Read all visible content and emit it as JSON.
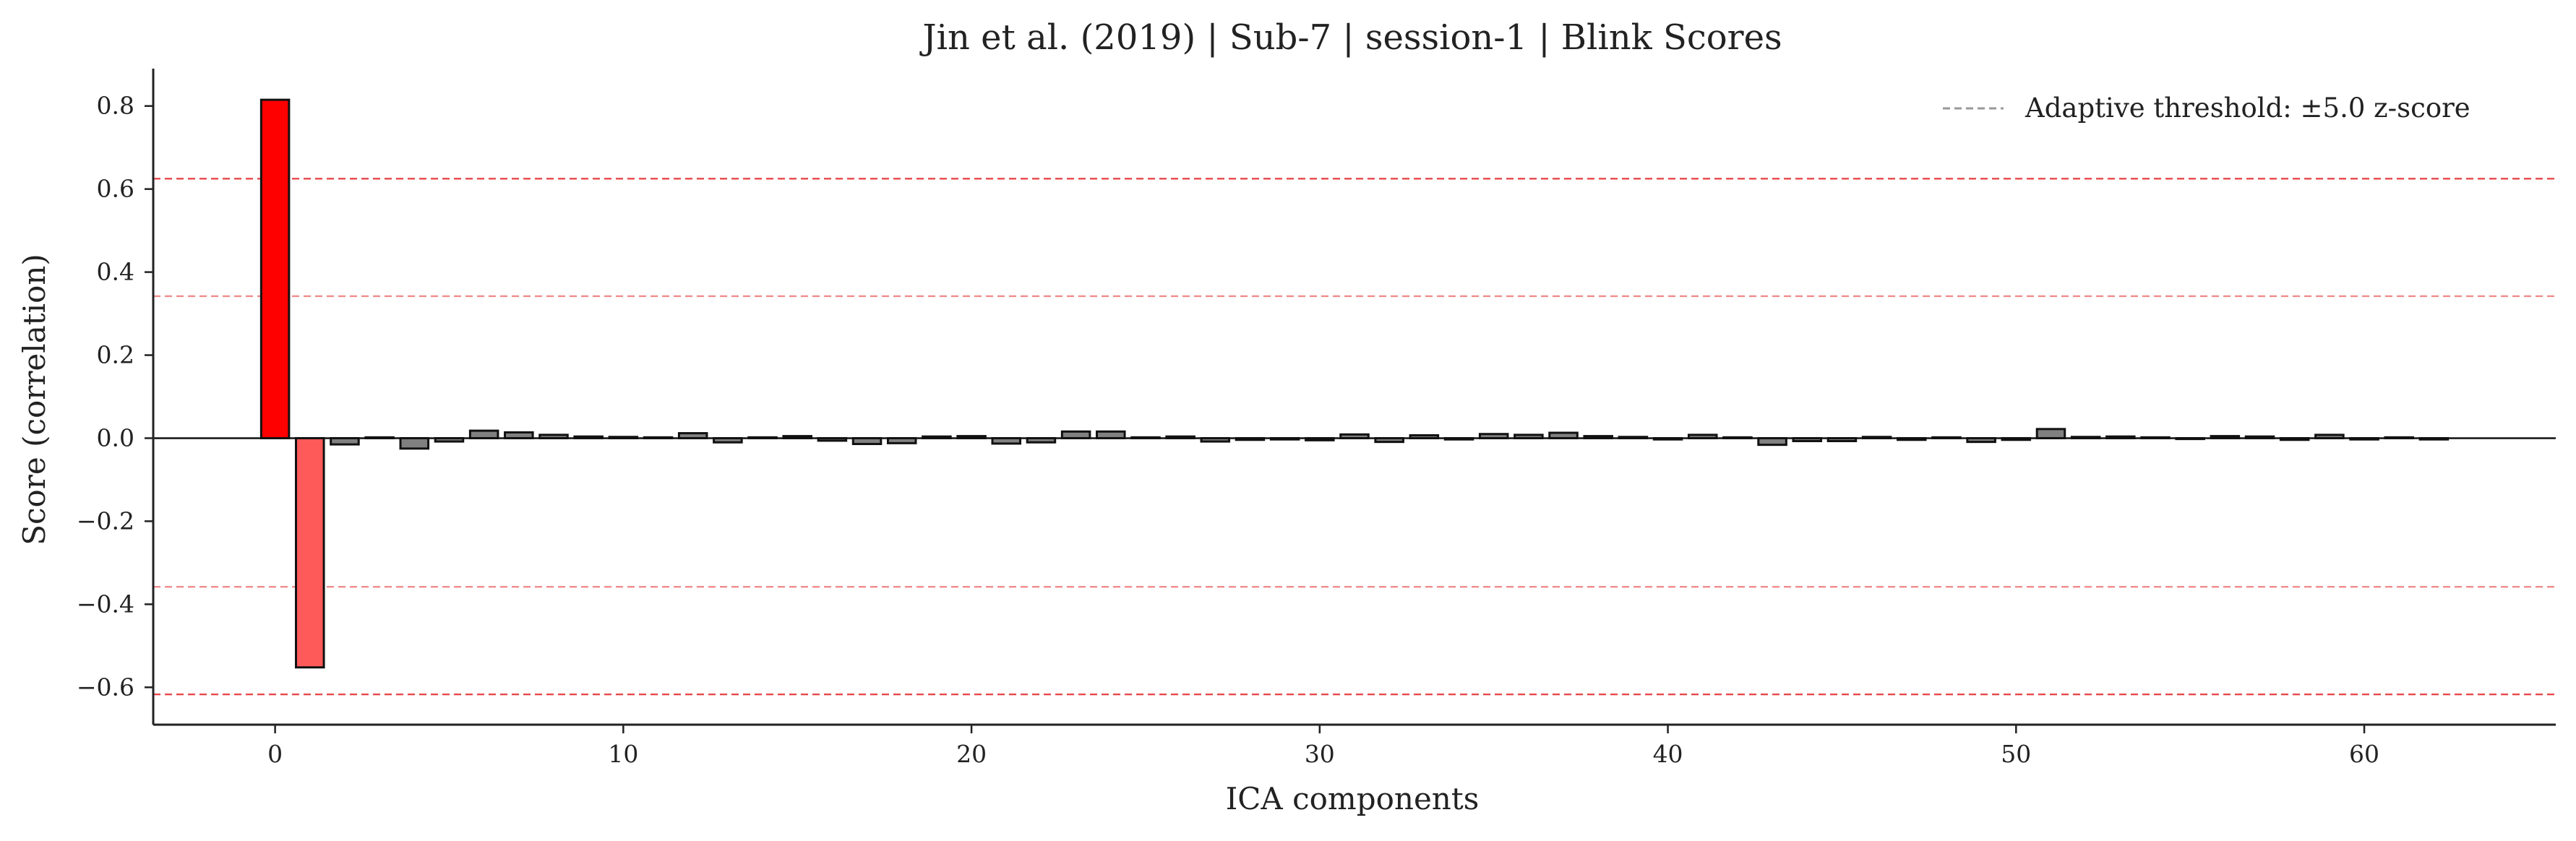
{
  "chart_data": {
    "type": "bar",
    "title": "Jin et al. (2019) | Sub-7 | session-1 | Blink Scores",
    "xlabel": "ICA components",
    "ylabel": "Score (correlation)",
    "xlim": [
      -3.5,
      65.5
    ],
    "ylim": [
      -0.69,
      0.89
    ],
    "xticks": [
      0,
      10,
      20,
      30,
      40,
      50,
      60
    ],
    "xtick_labels": [
      "0",
      "10",
      "20",
      "30",
      "40",
      "50",
      "60"
    ],
    "yticks": [
      -0.6,
      -0.4,
      -0.2,
      0.0,
      0.2,
      0.4,
      0.6,
      0.8
    ],
    "ytick_labels": [
      "−0.6",
      "−0.4",
      "−0.2",
      "0.0",
      "0.2",
      "0.4",
      "0.6",
      "0.8"
    ],
    "grid": false,
    "legend": {
      "placement": "top-right",
      "entries": [
        {
          "label": "Adaptive threshold: ±5.0 z-score",
          "style": "dashed",
          "color": "#999999"
        }
      ]
    },
    "threshold_lines": [
      {
        "value": 0.625,
        "color": "#e8474a"
      },
      {
        "value": 0.342,
        "color": "#f08c8c"
      },
      {
        "value": -0.358,
        "color": "#f08c8c"
      },
      {
        "value": -0.617,
        "color": "#e8474a"
      }
    ],
    "colors": {
      "bar_default": "#808080",
      "bar_positive_flagged": "#ff0000",
      "bar_negative_flagged": "#ff5a5a",
      "bar_edge": "#111111",
      "zero_line": "#111111",
      "axis": "#222222"
    },
    "categories": [
      0,
      1,
      2,
      3,
      4,
      5,
      6,
      7,
      8,
      9,
      10,
      11,
      12,
      13,
      14,
      15,
      16,
      17,
      18,
      19,
      20,
      21,
      22,
      23,
      24,
      25,
      26,
      27,
      28,
      29,
      30,
      31,
      32,
      33,
      34,
      35,
      36,
      37,
      38,
      39,
      40,
      41,
      42,
      43,
      44,
      45,
      46,
      47,
      48,
      49,
      50,
      51,
      52,
      53,
      54,
      55,
      56,
      57,
      58,
      59,
      60,
      61,
      62
    ],
    "values": [
      0.815,
      -0.552,
      -0.015,
      0.002,
      -0.025,
      -0.008,
      0.018,
      0.014,
      0.008,
      0.004,
      0.003,
      0.002,
      0.012,
      -0.01,
      0.002,
      0.005,
      -0.006,
      -0.014,
      -0.012,
      0.004,
      0.005,
      -0.013,
      -0.01,
      0.016,
      0.016,
      0.002,
      0.004,
      -0.008,
      -0.004,
      -0.003,
      -0.005,
      0.009,
      -0.009,
      0.007,
      -0.003,
      0.01,
      0.008,
      0.013,
      0.005,
      0.003,
      -0.003,
      0.008,
      0.002,
      -0.016,
      -0.007,
      -0.007,
      0.003,
      -0.004,
      0.002,
      -0.009,
      -0.004,
      0.022,
      0.003,
      0.004,
      0.002,
      -0.002,
      0.005,
      0.004,
      -0.004,
      0.008,
      -0.003,
      0.002,
      -0.003
    ],
    "flagged": {
      "0": "positive",
      "1": "negative"
    }
  }
}
